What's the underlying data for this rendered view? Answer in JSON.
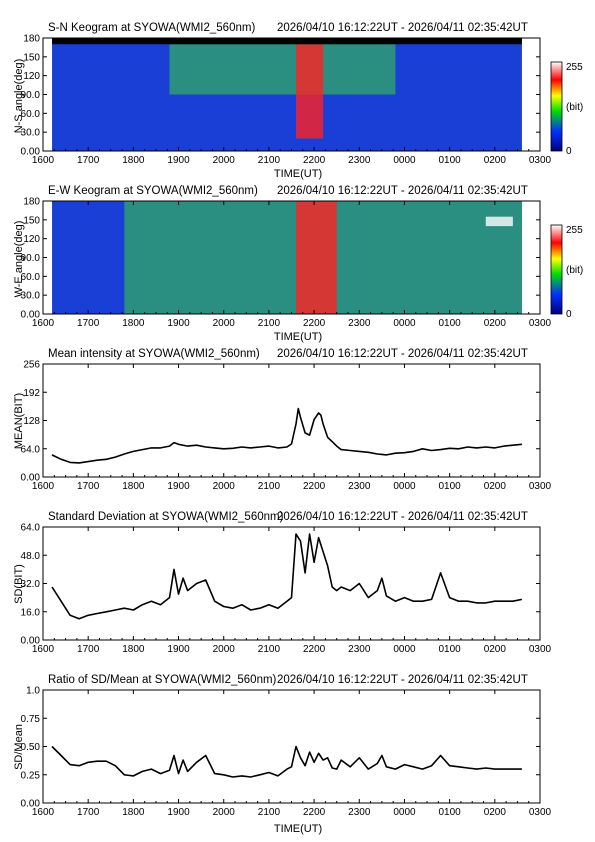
{
  "panels": [
    {
      "kind": "keogram",
      "title": "S-N Keogram at SYOWA(WMI2_560nm)",
      "time_range": "2026/04/10 16:12:22UT - 2026/04/11 02:35:42UT",
      "ylabel": "N-S angle(deg)",
      "xlabel": "TIME(UT)",
      "y_ticks": [
        "0.00",
        "30.0",
        "60.0",
        "90.0",
        "120",
        "150",
        "180"
      ],
      "colorbar": {
        "max_label": "255",
        "min_label": "0",
        "unit_label": "(bit)"
      }
    },
    {
      "kind": "keogram",
      "title": "E-W Keogram at SYOWA(WMI2_560nm)",
      "time_range": "2026/04/10 16:12:22UT - 2026/04/11 02:35:42UT",
      "ylabel": "W-E angle(deg)",
      "xlabel": "TIME(UT)",
      "y_ticks": [
        "0.00",
        "30.0",
        "60.0",
        "90.0",
        "120",
        "150",
        "180"
      ],
      "colorbar": {
        "max_label": "255",
        "min_label": "0",
        "unit_label": "(bit)"
      }
    },
    {
      "kind": "line",
      "title": "Mean intensity at SYOWA(WMI2_560nm)",
      "time_range": "2026/04/10 16:12:22UT - 2026/04/11 02:35:42UT",
      "ylabel": "MEAN(BIT)",
      "xlabel": "",
      "y_ticks": [
        "0.00",
        "64.0",
        "128",
        "192",
        "256"
      ]
    },
    {
      "kind": "line",
      "title": "Standard Deviation at SYOWA(WMI2_560nm)",
      "time_range": "2026/04/10 16:12:22UT - 2026/04/11 02:35:42UT",
      "ylabel": "SD(BIT)",
      "xlabel": "",
      "y_ticks": [
        "0.00",
        "16.0",
        "32.0",
        "48.0",
        "64.0"
      ]
    },
    {
      "kind": "line",
      "title": "Ratio of SD/Mean at SYOWA(WMI2_560nm)",
      "time_range": "2026/04/10 16:12:22UT - 2026/04/11 02:35:42UT",
      "ylabel": "SD/Mean",
      "xlabel": "TIME(UT)",
      "y_ticks": [
        "0.00",
        "0.25",
        "0.50",
        "0.75",
        "1.0"
      ]
    }
  ],
  "x_ticks": [
    "1600",
    "1700",
    "1800",
    "1900",
    "2000",
    "2100",
    "2200",
    "2300",
    "0000",
    "0100",
    "0200",
    "0300"
  ],
  "colors": {
    "trace": "#000000",
    "keogram_background": "#1a3fd6",
    "aurora": "#38d23a",
    "bright": "#ff2020",
    "night_mask": "#000000"
  },
  "chart_data": [
    {
      "type": "heatmap",
      "title": "S-N Keogram at SYOWA(WMI2_560nm)",
      "xlabel": "TIME(UT)",
      "ylabel": "N-S angle(deg)",
      "xlim": [
        16.0,
        27.0
      ],
      "ylim": [
        0,
        180
      ],
      "data_x_range": [
        16.2,
        26.6
      ],
      "value_range": [
        0,
        255
      ],
      "features": [
        {
          "time_start": 18.8,
          "time_end": 23.8,
          "angle_start": 90,
          "angle_end": 180,
          "intensity": "moderate"
        },
        {
          "time_start": 21.6,
          "time_end": 22.2,
          "angle_start": 20,
          "angle_end": 170,
          "intensity": "bright"
        },
        {
          "time_start": 16.2,
          "time_end": 26.6,
          "angle_start": 170,
          "angle_end": 180,
          "intensity": "masked"
        }
      ]
    },
    {
      "type": "heatmap",
      "title": "E-W Keogram at SYOWA(WMI2_560nm)",
      "xlabel": "TIME(UT)",
      "ylabel": "W-E angle(deg)",
      "xlim": [
        16.0,
        27.0
      ],
      "ylim": [
        0,
        180
      ],
      "data_x_range": [
        16.2,
        26.6
      ],
      "value_range": [
        0,
        255
      ],
      "features": [
        {
          "time_start": 17.8,
          "time_end": 26.6,
          "angle_start": 0,
          "angle_end": 180,
          "intensity": "moderate"
        },
        {
          "time_start": 21.6,
          "time_end": 22.5,
          "angle_start": 0,
          "angle_end": 180,
          "intensity": "bright"
        },
        {
          "time_start": 25.8,
          "time_end": 26.4,
          "angle_start": 140,
          "angle_end": 155,
          "intensity": "saturated"
        }
      ]
    },
    {
      "type": "line",
      "title": "Mean intensity at SYOWA(WMI2_560nm)",
      "xlabel": "",
      "ylabel": "MEAN(BIT)",
      "xlim": [
        16.0,
        27.0
      ],
      "ylim": [
        0,
        256
      ],
      "x": [
        16.2,
        16.4,
        16.6,
        16.8,
        17.0,
        17.2,
        17.4,
        17.6,
        17.8,
        18.0,
        18.2,
        18.4,
        18.6,
        18.8,
        18.9,
        19.0,
        19.2,
        19.4,
        19.6,
        19.8,
        20.0,
        20.2,
        20.4,
        20.6,
        20.8,
        21.0,
        21.2,
        21.4,
        21.5,
        21.6,
        21.65,
        21.7,
        21.8,
        21.9,
        22.0,
        22.1,
        22.15,
        22.2,
        22.3,
        22.4,
        22.5,
        22.6,
        22.8,
        23.0,
        23.2,
        23.4,
        23.6,
        23.8,
        24.0,
        24.2,
        24.4,
        24.6,
        24.8,
        25.0,
        25.2,
        25.4,
        25.6,
        25.8,
        26.0,
        26.2,
        26.4,
        26.6
      ],
      "y": [
        50,
        40,
        33,
        32,
        35,
        38,
        40,
        45,
        52,
        58,
        62,
        66,
        66,
        70,
        78,
        74,
        70,
        72,
        68,
        66,
        64,
        65,
        68,
        66,
        68,
        70,
        66,
        68,
        75,
        120,
        155,
        135,
        100,
        95,
        130,
        145,
        140,
        120,
        90,
        80,
        70,
        62,
        60,
        58,
        56,
        52,
        50,
        54,
        55,
        58,
        64,
        60,
        62,
        65,
        64,
        68,
        66,
        68,
        66,
        70,
        72,
        74
      ]
    },
    {
      "type": "line",
      "title": "Standard Deviation at SYOWA(WMI2_560nm)",
      "xlabel": "",
      "ylabel": "SD(BIT)",
      "xlim": [
        16.0,
        27.0
      ],
      "ylim": [
        0,
        64
      ],
      "x": [
        16.2,
        16.4,
        16.6,
        16.8,
        17.0,
        17.2,
        17.4,
        17.6,
        17.8,
        18.0,
        18.2,
        18.4,
        18.6,
        18.8,
        18.9,
        19.0,
        19.1,
        19.2,
        19.4,
        19.6,
        19.8,
        20.0,
        20.2,
        20.4,
        20.6,
        20.8,
        21.0,
        21.2,
        21.4,
        21.5,
        21.6,
        21.7,
        21.8,
        21.9,
        22.0,
        22.1,
        22.2,
        22.3,
        22.4,
        22.5,
        22.6,
        22.8,
        23.0,
        23.2,
        23.4,
        23.5,
        23.6,
        23.8,
        24.0,
        24.2,
        24.4,
        24.6,
        24.8,
        25.0,
        25.2,
        25.4,
        25.6,
        25.8,
        26.0,
        26.2,
        26.4,
        26.6
      ],
      "y": [
        30,
        22,
        14,
        12,
        14,
        15,
        16,
        17,
        18,
        17,
        20,
        22,
        20,
        24,
        40,
        26,
        35,
        28,
        32,
        34,
        22,
        19,
        18,
        20,
        17,
        18,
        20,
        18,
        22,
        24,
        60,
        56,
        38,
        60,
        44,
        58,
        50,
        42,
        30,
        28,
        30,
        28,
        32,
        24,
        28,
        35,
        25,
        22,
        24,
        22,
        22,
        23,
        38,
        24,
        22,
        22,
        21,
        21,
        22,
        22,
        22,
        23
      ]
    },
    {
      "type": "line",
      "title": "Ratio of SD/Mean at SYOWA(WMI2_560nm)",
      "xlabel": "TIME(UT)",
      "ylabel": "SD/Mean",
      "xlim": [
        16.0,
        27.0
      ],
      "ylim": [
        0,
        1.0
      ],
      "x": [
        16.2,
        16.4,
        16.6,
        16.8,
        17.0,
        17.2,
        17.4,
        17.6,
        17.8,
        18.0,
        18.2,
        18.4,
        18.6,
        18.8,
        18.9,
        19.0,
        19.1,
        19.2,
        19.4,
        19.6,
        19.8,
        20.0,
        20.2,
        20.4,
        20.6,
        20.8,
        21.0,
        21.2,
        21.4,
        21.5,
        21.6,
        21.7,
        21.8,
        21.9,
        22.0,
        22.1,
        22.2,
        22.3,
        22.4,
        22.5,
        22.6,
        22.8,
        23.0,
        23.2,
        23.4,
        23.5,
        23.6,
        23.8,
        24.0,
        24.2,
        24.4,
        24.6,
        24.8,
        25.0,
        25.2,
        25.4,
        25.6,
        25.8,
        26.0,
        26.2,
        26.4,
        26.6
      ],
      "y": [
        0.5,
        0.42,
        0.34,
        0.33,
        0.36,
        0.37,
        0.37,
        0.33,
        0.25,
        0.24,
        0.28,
        0.3,
        0.26,
        0.29,
        0.42,
        0.26,
        0.38,
        0.28,
        0.36,
        0.42,
        0.26,
        0.25,
        0.23,
        0.24,
        0.23,
        0.25,
        0.27,
        0.24,
        0.3,
        0.32,
        0.5,
        0.4,
        0.33,
        0.45,
        0.36,
        0.44,
        0.38,
        0.4,
        0.31,
        0.3,
        0.38,
        0.32,
        0.4,
        0.3,
        0.35,
        0.42,
        0.32,
        0.3,
        0.34,
        0.32,
        0.3,
        0.33,
        0.42,
        0.33,
        0.32,
        0.31,
        0.3,
        0.31,
        0.3,
        0.3,
        0.3,
        0.3
      ]
    }
  ]
}
